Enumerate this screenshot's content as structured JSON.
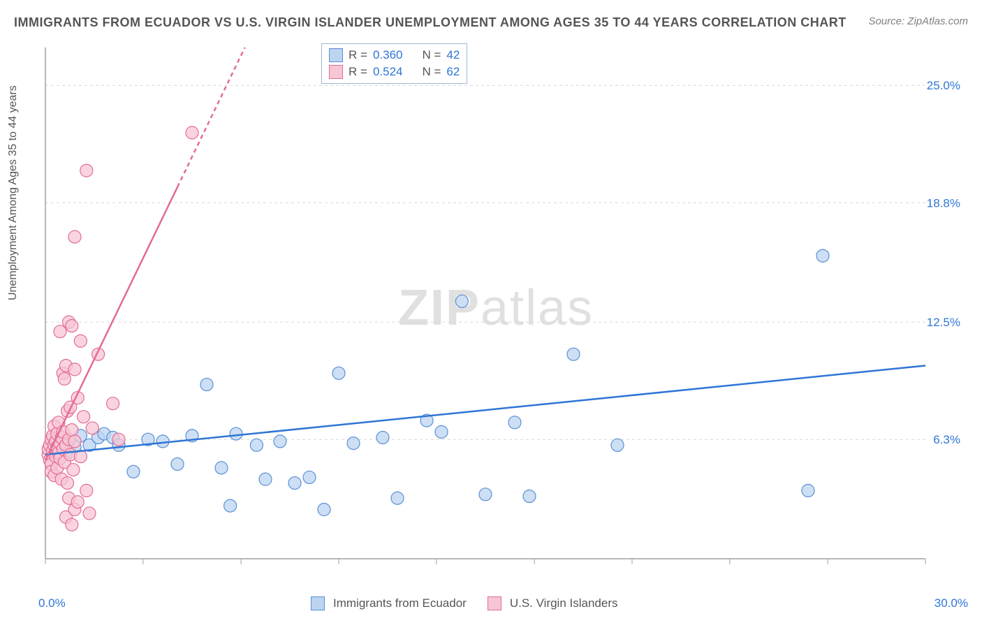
{
  "title": "IMMIGRANTS FROM ECUADOR VS U.S. VIRGIN ISLANDER UNEMPLOYMENT AMONG AGES 35 TO 44 YEARS CORRELATION CHART",
  "source": "Source: ZipAtlas.com",
  "ylabel": "Unemployment Among Ages 35 to 44 years",
  "watermark": "ZIPatlas",
  "chart": {
    "type": "scatter",
    "xlim": [
      0,
      30
    ],
    "ylim": [
      0,
      27
    ],
    "xtick_positions": [
      0,
      3.33,
      6.67,
      10,
      13.33,
      16.67,
      20,
      23.33,
      26.67,
      30
    ],
    "ytick_positions": [
      6.3,
      12.5,
      18.8,
      25.0
    ],
    "ytick_labels": [
      "6.3%",
      "12.5%",
      "18.8%",
      "25.0%"
    ],
    "x_axis_min_label": "0.0%",
    "x_axis_max_label": "30.0%",
    "axis_color": "#a0a0a0",
    "grid_color": "#d8d8d8",
    "grid_dash": "4,4",
    "tick_label_color": "#2e75d6",
    "tick_label_fontsize": 17,
    "background_color": "#ffffff",
    "series": [
      {
        "name": "Immigrants from Ecuador",
        "marker_fill": "#bcd4f0",
        "marker_stroke": "#5a8fd6",
        "marker_opacity": 0.75,
        "marker_radius": 9,
        "line_color": "#2e75d6",
        "line_width": 2.5,
        "line_dash_after_x": null,
        "r": 0.36,
        "n": 42,
        "trend": {
          "x1": 0,
          "y1": 5.5,
          "x2": 30,
          "y2": 10.2
        },
        "points": [
          [
            0.3,
            5.8
          ],
          [
            0.5,
            6.0
          ],
          [
            0.7,
            5.5
          ],
          [
            0.8,
            6.3
          ],
          [
            1.0,
            5.9
          ],
          [
            1.2,
            6.5
          ],
          [
            1.5,
            6.0
          ],
          [
            1.8,
            6.4
          ],
          [
            2.0,
            6.6
          ],
          [
            2.3,
            6.4
          ],
          [
            2.5,
            6.0
          ],
          [
            3.0,
            4.6
          ],
          [
            3.5,
            6.3
          ],
          [
            4.0,
            6.2
          ],
          [
            4.5,
            5.0
          ],
          [
            5.0,
            6.5
          ],
          [
            5.5,
            9.2
          ],
          [
            6.0,
            4.8
          ],
          [
            6.3,
            2.8
          ],
          [
            6.5,
            6.6
          ],
          [
            7.2,
            6.0
          ],
          [
            7.5,
            4.2
          ],
          [
            8.0,
            6.2
          ],
          [
            8.5,
            4.0
          ],
          [
            9.0,
            4.3
          ],
          [
            9.5,
            2.6
          ],
          [
            10.0,
            9.8
          ],
          [
            10.5,
            6.1
          ],
          [
            11.5,
            6.4
          ],
          [
            12.0,
            3.2
          ],
          [
            13.0,
            7.3
          ],
          [
            13.5,
            6.7
          ],
          [
            14.2,
            13.6
          ],
          [
            15.0,
            3.4
          ],
          [
            16.0,
            7.2
          ],
          [
            16.5,
            3.3
          ],
          [
            18.0,
            10.8
          ],
          [
            19.5,
            6.0
          ],
          [
            26.0,
            3.6
          ],
          [
            26.5,
            16.0
          ]
        ]
      },
      {
        "name": "U.S. Virgin Islanders",
        "marker_fill": "#f7c6d4",
        "marker_stroke": "#e36b94",
        "marker_opacity": 0.75,
        "marker_radius": 9,
        "line_color": "#e36b94",
        "line_width": 2.5,
        "line_dash_after_x": 4.5,
        "r": 0.524,
        "n": 62,
        "trend": {
          "x1": 0,
          "y1": 5.2,
          "x2": 6.8,
          "y2": 27
        },
        "points": [
          [
            0.1,
            5.5
          ],
          [
            0.1,
            5.8
          ],
          [
            0.15,
            6.0
          ],
          [
            0.15,
            5.2
          ],
          [
            0.2,
            6.3
          ],
          [
            0.2,
            5.0
          ],
          [
            0.2,
            4.6
          ],
          [
            0.25,
            6.5
          ],
          [
            0.25,
            5.7
          ],
          [
            0.3,
            6.0
          ],
          [
            0.3,
            4.4
          ],
          [
            0.3,
            7.0
          ],
          [
            0.35,
            5.4
          ],
          [
            0.35,
            6.2
          ],
          [
            0.4,
            5.9
          ],
          [
            0.4,
            6.6
          ],
          [
            0.4,
            4.8
          ],
          [
            0.45,
            5.6
          ],
          [
            0.45,
            7.2
          ],
          [
            0.5,
            6.1
          ],
          [
            0.5,
            5.3
          ],
          [
            0.5,
            12.0
          ],
          [
            0.55,
            6.4
          ],
          [
            0.55,
            4.2
          ],
          [
            0.6,
            5.8
          ],
          [
            0.6,
            6.7
          ],
          [
            0.6,
            9.8
          ],
          [
            0.65,
            5.1
          ],
          [
            0.65,
            9.5
          ],
          [
            0.7,
            6.0
          ],
          [
            0.7,
            10.2
          ],
          [
            0.7,
            2.2
          ],
          [
            0.75,
            7.8
          ],
          [
            0.75,
            4.0
          ],
          [
            0.8,
            6.3
          ],
          [
            0.8,
            12.5
          ],
          [
            0.8,
            3.2
          ],
          [
            0.85,
            5.5
          ],
          [
            0.85,
            8.0
          ],
          [
            0.9,
            6.8
          ],
          [
            0.9,
            12.3
          ],
          [
            0.9,
            1.8
          ],
          [
            0.95,
            4.7
          ],
          [
            1.0,
            6.2
          ],
          [
            1.0,
            10.0
          ],
          [
            1.0,
            2.6
          ],
          [
            1.0,
            17.0
          ],
          [
            1.1,
            8.5
          ],
          [
            1.1,
            3.0
          ],
          [
            1.2,
            11.5
          ],
          [
            1.2,
            5.4
          ],
          [
            1.3,
            7.5
          ],
          [
            1.4,
            20.5
          ],
          [
            1.4,
            3.6
          ],
          [
            1.5,
            2.4
          ],
          [
            1.6,
            6.9
          ],
          [
            1.8,
            10.8
          ],
          [
            2.3,
            8.2
          ],
          [
            2.5,
            6.3
          ],
          [
            5.0,
            22.5
          ]
        ]
      }
    ],
    "legend_top": {
      "border_color": "#9fb9d6",
      "rows": [
        {
          "swatch_fill": "#bcd4f0",
          "swatch_stroke": "#5a8fd6",
          "r_label": "R =",
          "r_val": "0.360",
          "n_label": "N =",
          "n_val": "42"
        },
        {
          "swatch_fill": "#f7c6d4",
          "swatch_stroke": "#e36b94",
          "r_label": "R =",
          "r_val": "0.524",
          "n_label": "N =",
          "n_val": "62"
        }
      ]
    },
    "legend_bottom": [
      {
        "swatch_fill": "#bcd4f0",
        "swatch_stroke": "#5a8fd6",
        "label": "Immigrants from Ecuador"
      },
      {
        "swatch_fill": "#f7c6d4",
        "swatch_stroke": "#e36b94",
        "label": "U.S. Virgin Islanders"
      }
    ]
  }
}
